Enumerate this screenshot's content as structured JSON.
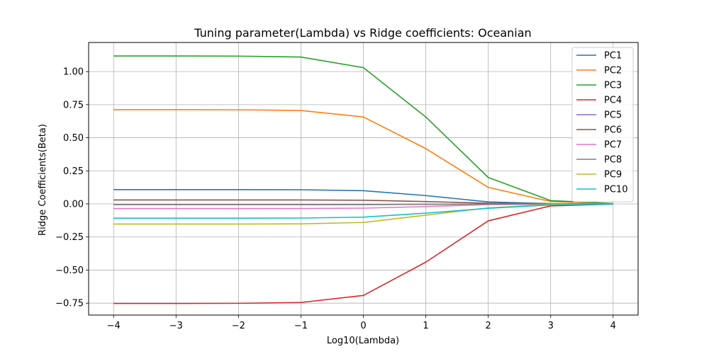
{
  "chart_data": {
    "type": "line",
    "title": "Tuning parameter(Lambda) vs Ridge coefficients: Oceanian",
    "xlabel": "Log10(Lambda)",
    "ylabel": "Ridge Coefficients(Beta)",
    "x": [
      -4,
      -3,
      -2,
      -1,
      0,
      1,
      2,
      3,
      4
    ],
    "xticks": [
      "−4",
      "−3",
      "−2",
      "−1",
      "0",
      "1",
      "2",
      "3",
      "4"
    ],
    "yticks": [
      "−0.75",
      "−0.50",
      "−0.25",
      "0.00",
      "0.25",
      "0.50",
      "0.75",
      "1.00"
    ],
    "ytick_values": [
      -0.75,
      -0.5,
      -0.25,
      0.0,
      0.25,
      0.5,
      0.75,
      1.0
    ],
    "xlim": [
      -4.4,
      4.4
    ],
    "ylim": [
      -0.84,
      1.22
    ],
    "grid": true,
    "legend_position": "top-right",
    "series": [
      {
        "name": "PC1",
        "color": "#1f77b4",
        "values": [
          0.108,
          0.108,
          0.108,
          0.107,
          0.1,
          0.063,
          0.015,
          0.002,
          0.0
        ]
      },
      {
        "name": "PC2",
        "color": "#ff7f0e",
        "values": [
          0.712,
          0.712,
          0.711,
          0.706,
          0.657,
          0.418,
          0.125,
          0.018,
          0.002
        ]
      },
      {
        "name": "PC3",
        "color": "#2ca02c",
        "values": [
          1.118,
          1.118,
          1.117,
          1.11,
          1.03,
          0.657,
          0.2,
          0.025,
          0.003
        ]
      },
      {
        "name": "PC4",
        "color": "#d62728",
        "values": [
          -0.752,
          -0.752,
          -0.751,
          -0.745,
          -0.692,
          -0.44,
          -0.128,
          -0.015,
          -0.002
        ]
      },
      {
        "name": "PC5",
        "color": "#9467bd",
        "values": [
          -0.005,
          -0.005,
          -0.005,
          -0.005,
          -0.005,
          -0.003,
          -0.001,
          0.0,
          0.0
        ]
      },
      {
        "name": "PC6",
        "color": "#8c564b",
        "values": [
          0.03,
          0.03,
          0.03,
          0.03,
          0.028,
          0.018,
          0.005,
          0.001,
          0.0
        ]
      },
      {
        "name": "PC7",
        "color": "#e377c2",
        "values": [
          -0.035,
          -0.035,
          -0.035,
          -0.035,
          -0.032,
          -0.02,
          -0.006,
          -0.001,
          0.0
        ]
      },
      {
        "name": "PC8",
        "color": "#7f7f7f",
        "values": [
          -0.005,
          -0.005,
          -0.005,
          -0.005,
          -0.005,
          -0.003,
          -0.001,
          0.0,
          0.0
        ]
      },
      {
        "name": "PC9",
        "color": "#bcbd22",
        "values": [
          -0.152,
          -0.152,
          -0.152,
          -0.151,
          -0.14,
          -0.085,
          -0.03,
          -0.004,
          0.0
        ]
      },
      {
        "name": "PC10",
        "color": "#17becf",
        "values": [
          -0.108,
          -0.108,
          -0.108,
          -0.107,
          -0.1,
          -0.07,
          -0.033,
          -0.008,
          -0.001
        ]
      }
    ]
  }
}
